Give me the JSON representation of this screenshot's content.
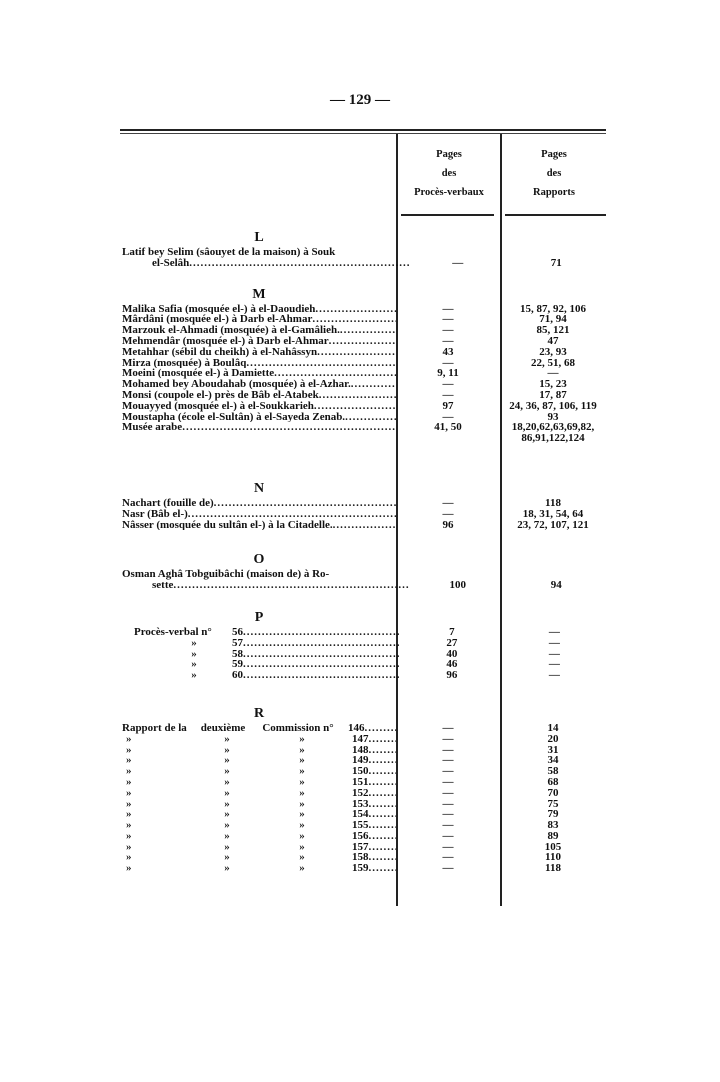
{
  "page_number": "— 129 —",
  "columns": {
    "proces_verbaux": [
      "Pages",
      "des",
      "Procès-verbaux"
    ],
    "rapports": [
      "Pages",
      "des",
      "Rapports"
    ]
  },
  "sections": [
    {
      "letter": "L",
      "rows": [
        {
          "lines": [
            "Latif bey Selim (sâouyet de la maison) à Souk",
            "el-Selâh"
          ],
          "pv": "—",
          "rap": "71"
        }
      ]
    },
    {
      "letter": "M",
      "rows": [
        {
          "lines": [
            "Malika Safia (mosquée el-) à el-Daoudieh"
          ],
          "pv": "—",
          "rap": "15, 87, 92, 106"
        },
        {
          "lines": [
            "Mârdâni (mosquée el-) à Darb el-Ahmar"
          ],
          "pv": "—",
          "rap": "71, 94"
        },
        {
          "lines": [
            "Marzouk el-Ahmadi (mosquée) à el-Gamâlieh."
          ],
          "pv": "—",
          "rap": "85, 121"
        },
        {
          "lines": [
            "Mehmendâr (mosquée el-) à Darb el-Ahmar"
          ],
          "pv": "—",
          "rap": "47"
        },
        {
          "lines": [
            "Metahhar (sébil du cheikh) à el-Nahâssyn"
          ],
          "pv": "43",
          "rap": "23, 93"
        },
        {
          "lines": [
            "Mirza (mosquée) à Boulâq"
          ],
          "pv": "—",
          "rap": "22, 51, 68"
        },
        {
          "lines": [
            "Moeini (mosquée el-) à Damiette"
          ],
          "pv": "9, 11",
          "rap": "—"
        },
        {
          "lines": [
            "Mohamed bey Aboudahab (mosquée) à el-Azhar."
          ],
          "pv": "—",
          "rap": "15, 23"
        },
        {
          "lines": [
            "Monsi (coupole el-) près de Bâb el-Atabek"
          ],
          "pv": "—",
          "rap": "17, 87"
        },
        {
          "lines": [
            "Mouayyed (mosquée el-) à el-Soukkarieh"
          ],
          "pv": "97",
          "rap": "24, 36, 87, 106, 119"
        },
        {
          "lines": [
            "Moustapha (école el-Sultân) à el-Sayeda Zenab."
          ],
          "pv": "—",
          "rap": "93"
        },
        {
          "lines": [
            "Musée arabe"
          ],
          "pv": "41, 50",
          "rap": "18,20,62,63,69,82,",
          "rap2": "86,91,122,124"
        }
      ]
    },
    {
      "letter": "N",
      "rows": [
        {
          "lines": [
            "Nachart (fouille de)"
          ],
          "pv": "—",
          "rap": "118"
        },
        {
          "lines": [
            "Nasr (Bâb el-)"
          ],
          "pv": "—",
          "rap": "18, 31, 54, 64"
        },
        {
          "lines": [
            "Nâsser (mosquée du sultân el-) à la Citadelle."
          ],
          "pv": "96",
          "rap": "23, 72, 107, 121"
        }
      ]
    },
    {
      "letter": "O",
      "rows": [
        {
          "lines": [
            "Osman Aghâ Tobguibâchi (maison de) à Ro-",
            "sette"
          ],
          "pv": "100",
          "rap": "94"
        }
      ]
    },
    {
      "letter": "P",
      "rows": [
        {
          "prefix": "Procès-verbal n°",
          "num": "56",
          "pv": "7",
          "rap": "—"
        },
        {
          "prefix": "»",
          "num": "57",
          "pv": "27",
          "rap": "—"
        },
        {
          "prefix": "»",
          "num": "58",
          "pv": "40",
          "rap": "—"
        },
        {
          "prefix": "»",
          "num": "59",
          "pv": "46",
          "rap": "—"
        },
        {
          "prefix": "»",
          "num": "60",
          "pv": "96",
          "rap": "—"
        }
      ]
    },
    {
      "letter": "R",
      "rows": [
        {
          "parts": [
            "Rapport de la",
            "deuxième",
            "Commission n°"
          ],
          "num": "146",
          "pv": "—",
          "rap": "14"
        },
        {
          "parts": [
            "»",
            "»",
            "»"
          ],
          "num": "147",
          "pv": "—",
          "rap": "20"
        },
        {
          "parts": [
            "»",
            "»",
            "»"
          ],
          "num": "148",
          "pv": "—",
          "rap": "31"
        },
        {
          "parts": [
            "»",
            "»",
            "»"
          ],
          "num": "149",
          "pv": "—",
          "rap": "34"
        },
        {
          "parts": [
            "»",
            "»",
            "»"
          ],
          "num": "150",
          "pv": "—",
          "rap": "58"
        },
        {
          "parts": [
            "»",
            "»",
            "»"
          ],
          "num": "151",
          "pv": "—",
          "rap": "68"
        },
        {
          "parts": [
            "»",
            "»",
            "»"
          ],
          "num": "152",
          "pv": "—",
          "rap": "70"
        },
        {
          "parts": [
            "»",
            "»",
            "»"
          ],
          "num": "153",
          "pv": "—",
          "rap": "75"
        },
        {
          "parts": [
            "»",
            "»",
            "»"
          ],
          "num": "154",
          "pv": "—",
          "rap": "79"
        },
        {
          "parts": [
            "»",
            "»",
            "»"
          ],
          "num": "155",
          "pv": "—",
          "rap": "83"
        },
        {
          "parts": [
            "»",
            "»",
            "»"
          ],
          "num": "156",
          "pv": "—",
          "rap": "89"
        },
        {
          "parts": [
            "»",
            "»",
            "»"
          ],
          "num": "157",
          "pv": "—",
          "rap": "105"
        },
        {
          "parts": [
            "»",
            "»",
            "»"
          ],
          "num": "158",
          "pv": "—",
          "rap": "110"
        },
        {
          "parts": [
            "»",
            "»",
            "»"
          ],
          "num": "159",
          "pv": "—",
          "rap": "118"
        }
      ]
    }
  ]
}
